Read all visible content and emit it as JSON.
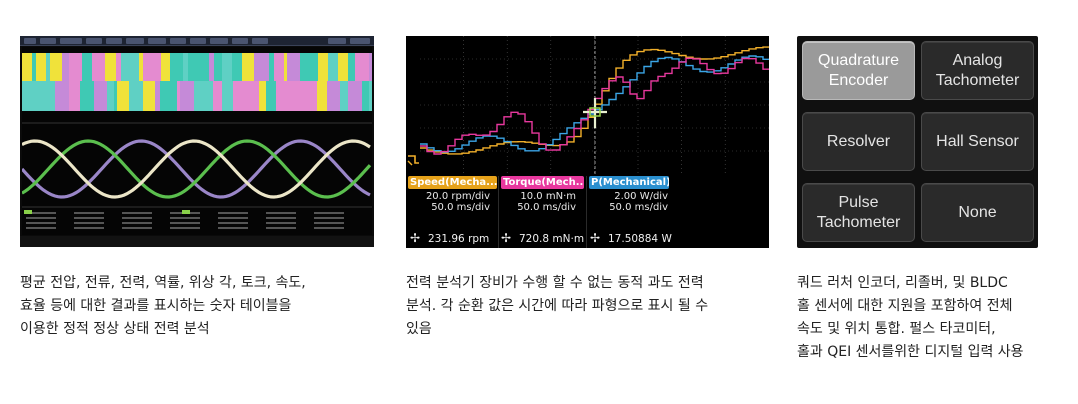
{
  "panel1": {
    "caption_lines": [
      "평균 전압, 전류, 전력, 역률, 위상 각, 토크, 속도,",
      "효율 등에 대한 결과를 표시하는 숫자 테이블을",
      "이용한 정적 정상 상태 전력 분석"
    ]
  },
  "panel2": {
    "channels": [
      {
        "label": "Speed(Mecha...",
        "scale": "20.0 rpm/div",
        "time": "50.0 ms/div",
        "readout": "231.96 rpm",
        "color": "#f2b02a"
      },
      {
        "label": "Torque(Mech...",
        "scale": "10.0 mN·m",
        "time": "50.0 ms/div",
        "readout": "720.8 mN·m",
        "color": "#e8389e"
      },
      {
        "label": "P(Mechanical)",
        "scale": "2.00 W/div",
        "time": "50.0 ms/div",
        "readout": "17.50884 W",
        "color": "#3ba5e6"
      }
    ],
    "cursor_icon": "cursor-marker-icon",
    "caption_lines": [
      "전력 분석기 장비가 수행 할 수 없는 동적 과도 전력",
      "분석. 각 순환 값은 시간에 따라 파형으로 표시 될 수",
      "있음"
    ]
  },
  "panel3": {
    "buttons": [
      {
        "label_lines": [
          "Quadrature",
          "Encoder"
        ],
        "selected": true
      },
      {
        "label_lines": [
          "Analog",
          "Tachometer"
        ],
        "selected": false
      },
      {
        "label_lines": [
          "Resolver"
        ],
        "selected": false
      },
      {
        "label_lines": [
          "Hall Sensor"
        ],
        "selected": false
      },
      {
        "label_lines": [
          "Pulse",
          "Tachometer"
        ],
        "selected": false
      },
      {
        "label_lines": [
          "None"
        ],
        "selected": false
      }
    ],
    "caption_lines": [
      "쿼드 러처 인코더, 리졸버, 및 BLDC",
      "홀 센서에 대한 지원을 포함하여 전체",
      "속도 및 위치 통합. 펄스 타코미터,",
      "홀과 QEI 센서를위한 디지털 입력 사용"
    ]
  }
}
